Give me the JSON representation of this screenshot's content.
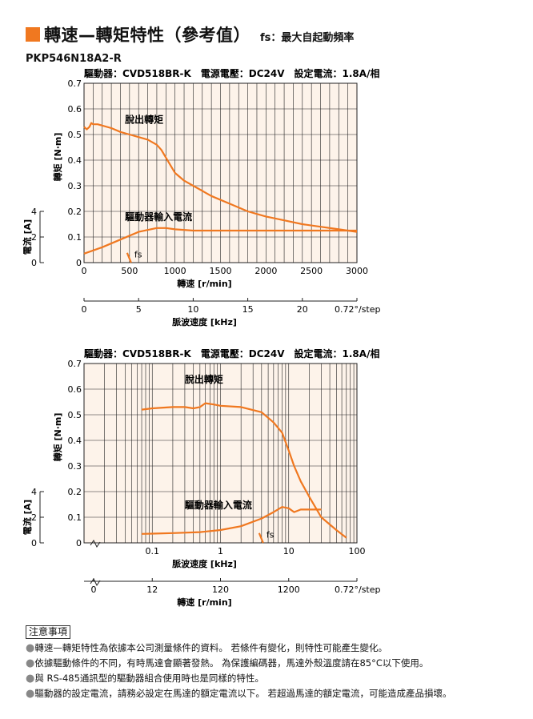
{
  "header": {
    "title": "轉速—轉矩特性（參考值）",
    "subtitle": "fs：最大自起動頻率",
    "accent_color": "#f07820"
  },
  "model": "PKP546N18A2-R",
  "chart_data": [
    {
      "type": "line",
      "info": "驅動器：CVD518BR-K　電源電壓：DC24V　設定電流：1.8A/相",
      "x_scale": "linear",
      "xlim": [
        0,
        3000
      ],
      "xticks": [
        "0",
        "500",
        "1000",
        "1500",
        "2000",
        "2500",
        "3000"
      ],
      "xlabel": "轉速 [r/min]",
      "secondary_x": {
        "ticks": [
          "0",
          "5",
          "10",
          "15",
          "20"
        ],
        "end_label": "0.72°/step",
        "label": "脈波速度 [kHz]"
      },
      "ylabel": "轉矩 [N·m]",
      "ylim": [
        0,
        0.7
      ],
      "yticks": [
        "0",
        "0.1",
        "0.2",
        "0.3",
        "0.4",
        "0.5",
        "0.6",
        "0.7"
      ],
      "secondary_y": {
        "label": "電流 [A]",
        "ticks": [
          "0",
          "2",
          "4"
        ],
        "ylim": [
          0,
          4
        ]
      },
      "grid": true,
      "line_color": "#f07820",
      "background": "#fdf3ea",
      "series": [
        {
          "name": "脫出轉矩",
          "axis": "torque",
          "x": [
            0,
            30,
            60,
            80,
            100,
            150,
            200,
            300,
            400,
            500,
            600,
            700,
            800,
            850,
            900,
            950,
            1000,
            1100,
            1200,
            1400,
            1600,
            1800,
            2000,
            2200,
            2400,
            2600,
            2800,
            3000
          ],
          "y": [
            0.53,
            0.52,
            0.53,
            0.545,
            0.54,
            0.54,
            0.535,
            0.525,
            0.51,
            0.5,
            0.49,
            0.48,
            0.46,
            0.44,
            0.41,
            0.38,
            0.35,
            0.32,
            0.3,
            0.26,
            0.23,
            0.2,
            0.18,
            0.165,
            0.15,
            0.14,
            0.13,
            0.12
          ]
        },
        {
          "name": "驅動器輸入電流",
          "axis": "current",
          "x": [
            0,
            200,
            400,
            600,
            800,
            900,
            1000,
            1200,
            1500,
            2000,
            2500,
            3000
          ],
          "y": [
            0.035,
            0.06,
            0.09,
            0.12,
            0.135,
            0.135,
            0.13,
            0.125,
            0.125,
            0.125,
            0.125,
            0.125
          ]
        }
      ],
      "fs_label": "fs",
      "fs_x": 500
    },
    {
      "type": "line",
      "info": "驅動器：CVD518BR-K　電源電壓：DC24V　設定電流：1.8A/相",
      "x_scale": "log",
      "xlim": [
        0.01,
        100
      ],
      "xticks": [
        "0.1",
        "1",
        "10",
        "100"
      ],
      "xlabel": "脈波速度 [kHz]",
      "secondary_x": {
        "ticks": [
          "0",
          "12",
          "120",
          "1200"
        ],
        "end_label": "0.72°/step",
        "label": "轉速 [r/min]"
      },
      "ylabel": "轉矩 [N·m]",
      "ylim": [
        0,
        0.7
      ],
      "yticks": [
        "0",
        "0.1",
        "0.2",
        "0.3",
        "0.4",
        "0.5",
        "0.6",
        "0.7"
      ],
      "secondary_y": {
        "label": "電流 [A]",
        "ticks": [
          "0",
          "2",
          "4"
        ],
        "ylim": [
          0,
          4
        ]
      },
      "grid": true,
      "line_color": "#f07820",
      "background": "#fdf3ea",
      "series": [
        {
          "name": "脫出轉矩",
          "axis": "torque",
          "x": [
            0.07,
            0.1,
            0.2,
            0.3,
            0.4,
            0.5,
            0.6,
            0.8,
            1,
            2,
            4,
            6,
            8,
            10,
            12,
            15,
            20,
            30,
            50,
            70
          ],
          "y": [
            0.52,
            0.525,
            0.53,
            0.53,
            0.525,
            0.53,
            0.545,
            0.54,
            0.535,
            0.53,
            0.51,
            0.47,
            0.43,
            0.36,
            0.3,
            0.24,
            0.18,
            0.1,
            0.05,
            0.02
          ]
        },
        {
          "name": "驅動器輸入電流",
          "axis": "current",
          "x": [
            0.07,
            0.1,
            0.2,
            0.5,
            1,
            2,
            4,
            6,
            8,
            10,
            12,
            15,
            20,
            30
          ],
          "y": [
            0.035,
            0.036,
            0.038,
            0.042,
            0.05,
            0.065,
            0.095,
            0.12,
            0.14,
            0.135,
            0.12,
            0.13,
            0.13,
            0.13
          ]
        }
      ],
      "fs_label": "fs",
      "fs_x": 4
    }
  ],
  "notes": {
    "title": "注意事項",
    "items": [
      "轉速—轉矩特性為依據本公司測量條件的資料。 若條件有變化，則特性可能產生變化。",
      "依據驅動條件的不同，有時馬達會顯著發熱。 為保護編碼器，馬達外殼溫度請在85°C以下使用。",
      "與 RS-485通訊型的驅動器組合使用時也是同樣的特性。",
      "驅動器的設定電流，請務必設定在馬達的額定電流以下。 若超過馬達的額定電流，可能造成產品損壞。"
    ]
  }
}
